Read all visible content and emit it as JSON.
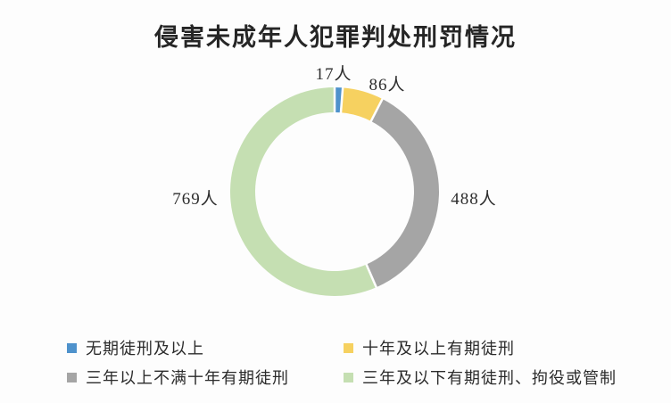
{
  "chart_data": {
    "type": "pie",
    "subtype": "donut",
    "title": "侵害未成年人犯罪判处刑罚情况",
    "unit": "人",
    "categories": [
      "无期徒刑及以上",
      "十年及以上有期徒刑",
      "三年以上不满十年有期徒刑",
      "三年及以下有期徒刑、拘役或管制"
    ],
    "values": [
      17,
      86,
      488,
      769
    ],
    "labels": [
      "17人",
      "86人",
      "488人",
      "769人"
    ],
    "colors": [
      "#4E92CC",
      "#F6D160",
      "#A5A5A5",
      "#C5DFB2"
    ],
    "total": 1360,
    "start_angle_deg": 0,
    "direction": "clockwise",
    "legend_position": "bottom",
    "separator_color": "#ffffff",
    "background_color": "#fdfdfd"
  }
}
